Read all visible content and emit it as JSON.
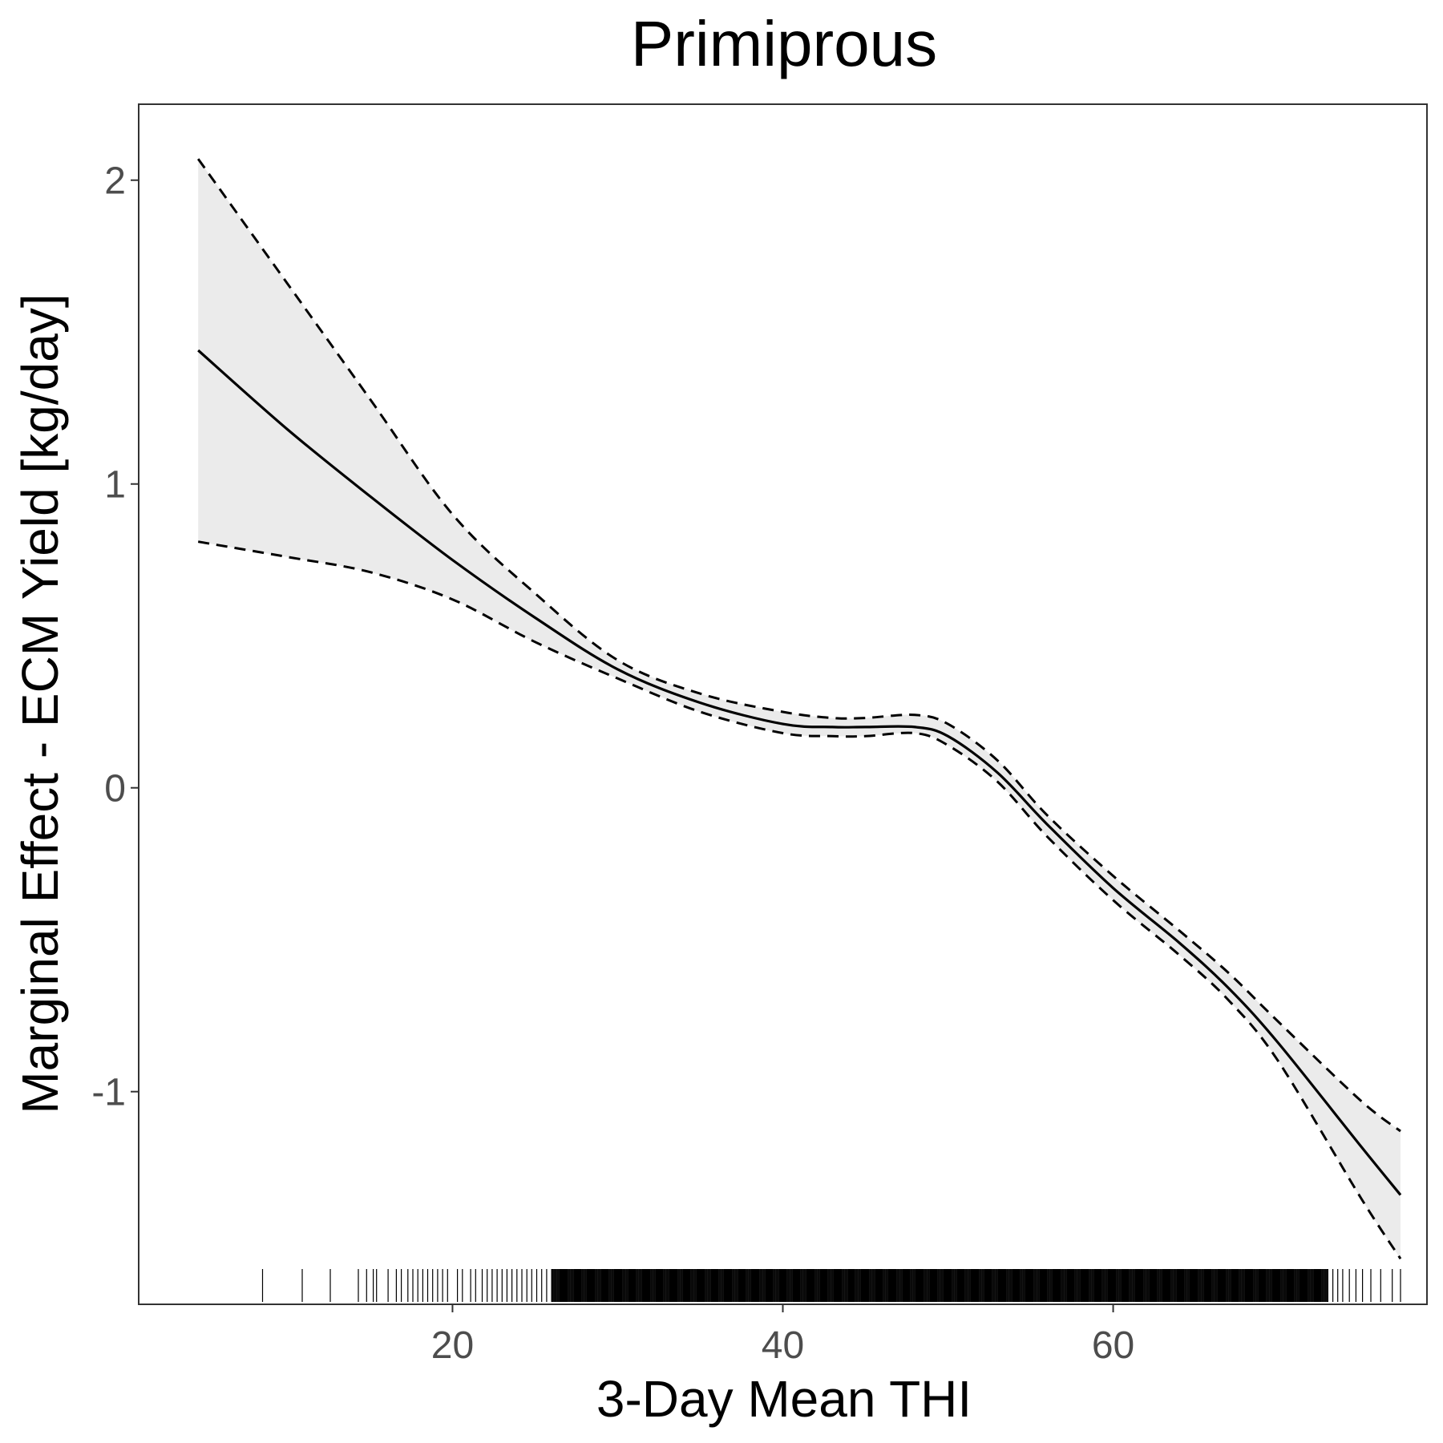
{
  "chart_data": {
    "type": "line",
    "title": "Primiprous",
    "xlabel": "3-Day Mean THI",
    "ylabel": "Marginal Effect - ECM Yield [kg/day]",
    "xlim": [
      1,
      79
    ],
    "ylim": [
      -1.7,
      2.25
    ],
    "xticks": [
      20,
      40,
      60
    ],
    "yticks": [
      -1,
      0,
      1,
      2
    ],
    "x_tick_labels": [
      "20",
      "40",
      "60"
    ],
    "y_tick_labels": [
      "-1",
      "0",
      "1",
      "2"
    ],
    "grid": false,
    "legend": "none",
    "colors": {
      "line": "#000000",
      "ribbon": "#ebebeb",
      "panel_border": "#333333",
      "tick_label": "#4d4d4d"
    },
    "x": [
      4.6,
      10,
      15,
      20,
      25,
      30,
      35,
      40,
      43,
      45,
      48,
      50,
      53,
      56,
      60,
      64,
      67,
      70,
      75,
      77.4
    ],
    "series": [
      {
        "role": "estimate",
        "style": "solid",
        "values": [
          1.44,
          1.18,
          0.96,
          0.75,
          0.56,
          0.39,
          0.28,
          0.21,
          0.2,
          0.2,
          0.2,
          0.17,
          0.05,
          -0.12,
          -0.33,
          -0.51,
          -0.66,
          -0.84,
          -1.18,
          -1.34
        ]
      },
      {
        "role": "upper_ci",
        "style": "dashed",
        "values": [
          2.07,
          1.66,
          1.28,
          0.9,
          0.64,
          0.42,
          0.31,
          0.25,
          0.23,
          0.23,
          0.24,
          0.21,
          0.09,
          -0.09,
          -0.29,
          -0.47,
          -0.61,
          -0.77,
          -1.03,
          -1.13
        ]
      },
      {
        "role": "lower_ci",
        "style": "dashed",
        "values": [
          0.81,
          0.76,
          0.71,
          0.62,
          0.48,
          0.36,
          0.25,
          0.18,
          0.17,
          0.17,
          0.18,
          0.14,
          0.02,
          -0.16,
          -0.37,
          -0.55,
          -0.7,
          -0.9,
          -1.35,
          -1.55
        ]
      }
    ],
    "rug": {
      "sparse_x": [
        8.5,
        10.9,
        12.6,
        14.3,
        14.8,
        15.2,
        15.4,
        16.1,
        16.6,
        16.9,
        17.3,
        17.6,
        17.9,
        18.2,
        18.5,
        18.8,
        19.1,
        19.4,
        19.7,
        20.3,
        20.6,
        21.1,
        21.4,
        21.8,
        22.1,
        22.4,
        22.7,
        23.0,
        23.3,
        23.6,
        23.9,
        24.2,
        24.5,
        24.8,
        25.1,
        25.4,
        25.7
      ],
      "dense_range": [
        26,
        73
      ],
      "sparse_x_high": [
        73.3,
        73.6,
        73.9,
        74.3,
        74.7,
        75.1,
        75.6,
        76.2,
        76.9,
        77.4
      ]
    }
  }
}
